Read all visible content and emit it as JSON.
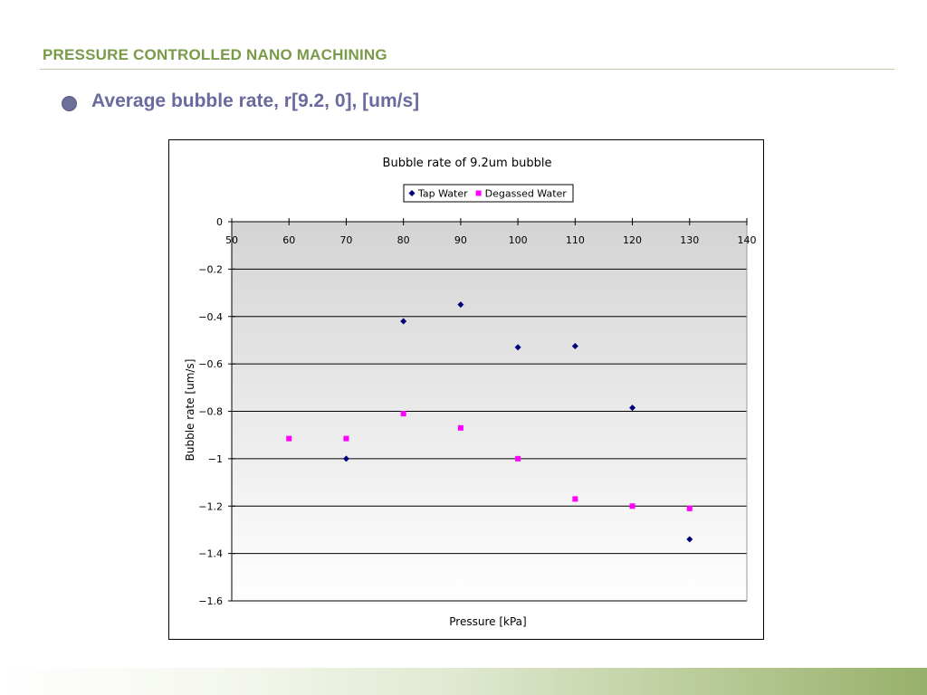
{
  "slide": {
    "title": "PRESSURE CONTROLLED NANO MACHINING",
    "bullet": "Average bubble rate, r[9.2, 0], [um/s]"
  },
  "colors": {
    "title_green": "#7a9a4a",
    "bullet_purple": "#6a6a9e",
    "tap_water": "#00007f",
    "degassed_water": "#ff00ff"
  },
  "chart_data": {
    "type": "scatter",
    "title": "Bubble rate of 9.2um bubble",
    "xlabel": "Pressure [kPa]",
    "ylabel": "Bubble rate [um/s]",
    "xlim": [
      50,
      140
    ],
    "ylim": [
      -1.6,
      0
    ],
    "x_ticks": [
      "50",
      "60",
      "70",
      "80",
      "90",
      "100",
      "110",
      "120",
      "130",
      "140"
    ],
    "y_ticks": [
      "0",
      "−0.2",
      "−0.4",
      "−0.6",
      "−0.8",
      "−1",
      "−1.2",
      "−1.4",
      "−1.6"
    ],
    "grid": true,
    "x_axis_position": "top (crosses at y = 0)",
    "legend_position": "top-center",
    "series": [
      {
        "name": "Tap Water",
        "marker": "diamond",
        "color": "#00007f",
        "points": [
          [
            70,
            -1.0
          ],
          [
            80,
            -0.42
          ],
          [
            90,
            -0.35
          ],
          [
            100,
            -0.53
          ],
          [
            110,
            -0.525
          ],
          [
            120,
            -0.785
          ],
          [
            130,
            -1.34
          ]
        ]
      },
      {
        "name": "Degassed Water",
        "marker": "square",
        "color": "#ff00ff",
        "points": [
          [
            60,
            -0.915
          ],
          [
            70,
            -0.915
          ],
          [
            80,
            -0.81
          ],
          [
            90,
            -0.87
          ],
          [
            100,
            -1.0
          ],
          [
            110,
            -1.17
          ],
          [
            120,
            -1.2
          ],
          [
            130,
            -1.21
          ]
        ]
      }
    ]
  }
}
